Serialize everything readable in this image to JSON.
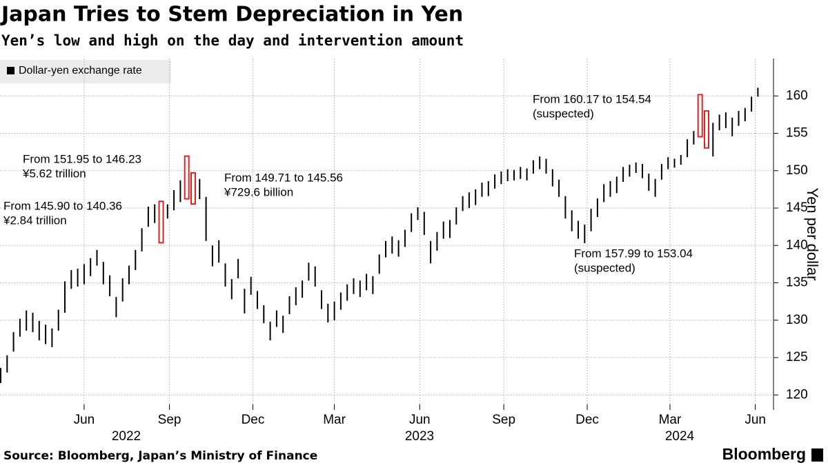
{
  "chart_data": {
    "type": "range_bar",
    "title": "Japan Tries to Stem Depreciation in Yen",
    "subtitle": "Yen’s low and high on the day and intervention amount",
    "y_axis_label": "Yen per dollar",
    "source": "Source: Bloomberg, Japan’s Ministry of Finance",
    "brand": "Bloomberg",
    "grid": true,
    "ylim": [
      118,
      165
    ],
    "yticks": [
      120,
      125,
      130,
      135,
      140,
      145,
      150,
      155,
      160
    ],
    "xticks": [
      {
        "value": 13,
        "label": "Jun"
      },
      {
        "value": 26.3,
        "label": "Sep"
      },
      {
        "value": 39.3,
        "label": "Dec"
      },
      {
        "value": 52,
        "label": "Mar"
      },
      {
        "value": 65.3,
        "label": "Jun"
      },
      {
        "value": 78.4,
        "label": "Sep"
      },
      {
        "value": 91.4,
        "label": "Dec"
      },
      {
        "value": 104.3,
        "label": "Mar"
      },
      {
        "value": 117.6,
        "label": "Jun"
      }
    ],
    "years": [
      "2022",
      "2023",
      "2024"
    ],
    "highlight_color": "#e5201f",
    "series": [
      {
        "name": "Dollar-yen exchange rate",
        "color": "#000000",
        "low": [
          121.6,
          123,
          125.8,
          127.8,
          128.6,
          128.4,
          127.3,
          126.8,
          126.4,
          128.6,
          131,
          134.2,
          134.5,
          134.8,
          135.9,
          137.3,
          134.8,
          133.2,
          130.4,
          132.5,
          134.8,
          136.7,
          139.2,
          142.5,
          143,
          140.36,
          143.6,
          144.7,
          145.8,
          146.23,
          145.56,
          146.2,
          140.6,
          137.2,
          137.7,
          134.5,
          132.8,
          135.6,
          130.9,
          133.4,
          131.5,
          129.6,
          127.3,
          129.1,
          128.3,
          130.8,
          132,
          133,
          135.3,
          134.5,
          131.5,
          129.7,
          130,
          131.4,
          132.6,
          133.5,
          133.1,
          134,
          133.5,
          136.2,
          138.4,
          138.9,
          138.5,
          139.8,
          141.8,
          143.4,
          141.4,
          137.6,
          139.3,
          140.9,
          141,
          142.8,
          144.6,
          145,
          145.4,
          146.5,
          146.6,
          147.6,
          148.2,
          148.6,
          148.7,
          148.9,
          148.7,
          149.6,
          150.2,
          149.6,
          147.9,
          146.5,
          143.6,
          141.9,
          140.9,
          140.3,
          141.9,
          143.8,
          145.8,
          146.5,
          147,
          148.5,
          149.2,
          149.7,
          149,
          147.3,
          146.5,
          148.8,
          150.2,
          150.4,
          150.8,
          151.8,
          153.5,
          154.54,
          153.04,
          151.9,
          155.4,
          155.7,
          154.6,
          156,
          156.6,
          157.9,
          159.9
        ],
        "high": [
          123.6,
          125.3,
          128.4,
          130.2,
          131.3,
          131,
          129.9,
          129.4,
          128.9,
          131.4,
          135.2,
          136.7,
          136.9,
          137.5,
          138.3,
          139.4,
          137.8,
          136,
          133.1,
          135.6,
          137.3,
          139.4,
          142.3,
          145.2,
          145.5,
          145.9,
          145.5,
          147.4,
          148.7,
          151.95,
          149.71,
          148.9,
          146.5,
          140,
          140.7,
          137.6,
          135.5,
          138.2,
          134.2,
          135.8,
          133.9,
          132,
          129.8,
          131.3,
          130.6,
          133.2,
          134.4,
          135.3,
          137.7,
          137.2,
          134,
          132.2,
          132.5,
          133.7,
          134.8,
          135.6,
          135.3,
          136.2,
          135.9,
          138.8,
          140.6,
          141.2,
          140.7,
          142.1,
          144.3,
          145.1,
          144.5,
          140.6,
          141.8,
          143.2,
          143.4,
          145.1,
          146.6,
          147.1,
          147.5,
          148.4,
          148.6,
          149.5,
          149.9,
          150.2,
          150.1,
          150.5,
          150.3,
          151.4,
          151.9,
          151.6,
          150.2,
          148.8,
          146.6,
          144.7,
          143.3,
          142.8,
          144.9,
          146.3,
          148.2,
          148.6,
          149.2,
          150.5,
          150.8,
          151.1,
          150.9,
          149.6,
          148.9,
          150.9,
          151.8,
          151.6,
          152.1,
          154.2,
          155.3,
          160.17,
          157.99,
          156.4,
          157.5,
          157.8,
          157.1,
          158,
          158.4,
          159.9,
          161.1
        ]
      }
    ],
    "interventions": [
      {
        "index": 25,
        "lines": [
          "From 145.90 to 140.36",
          "¥2.84 trillion"
        ]
      },
      {
        "index": 29,
        "lines": [
          "From 151.95 to 146.23",
          "¥5.62 trillion"
        ]
      },
      {
        "index": 30,
        "lines": [
          "From 149.71 to 145.56",
          "¥729.6 billion"
        ]
      },
      {
        "index": 109,
        "lines": [
          "From 160.17 to 154.54",
          "(suspected)"
        ]
      },
      {
        "index": 110,
        "lines": [
          "From 157.99 to 153.04",
          "(suspected)"
        ]
      }
    ]
  }
}
